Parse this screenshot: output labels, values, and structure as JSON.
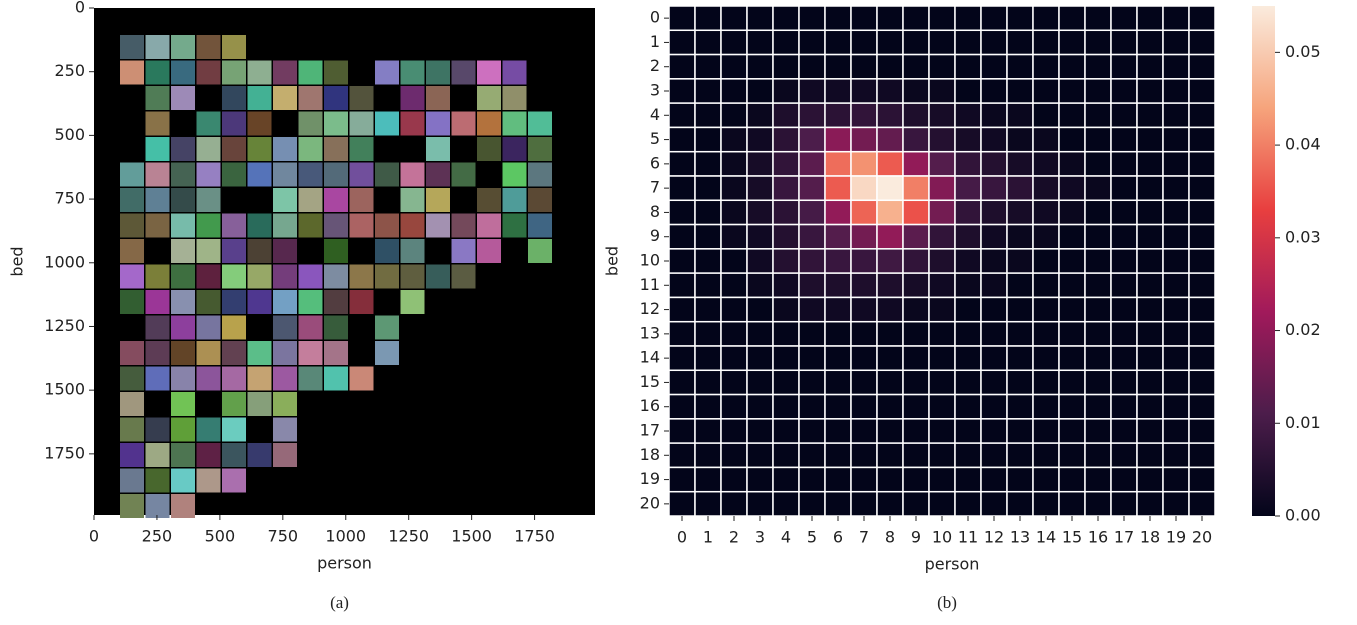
{
  "chart_data": [
    {
      "type": "image",
      "xlabel": "person",
      "ylabel": "bed",
      "caption": "(a)",
      "xlim": [
        0,
        1990
      ],
      "ylim": [
        1990,
        0
      ],
      "xticks": [
        0,
        250,
        500,
        750,
        1000,
        1250,
        1500,
        1750
      ],
      "yticks": [
        0,
        250,
        500,
        750,
        1000,
        1250,
        1500,
        1750
      ],
      "background": "#000000"
    },
    {
      "type": "heatmap",
      "xlabel": "person",
      "ylabel": "bed",
      "caption": "(b)",
      "x": [
        0,
        1,
        2,
        3,
        4,
        5,
        6,
        7,
        8,
        9,
        10,
        11,
        12,
        13,
        14,
        15,
        16,
        17,
        18,
        19,
        20
      ],
      "y": [
        0,
        1,
        2,
        3,
        4,
        5,
        6,
        7,
        8,
        9,
        10,
        11,
        12,
        13,
        14,
        15,
        16,
        17,
        18,
        19,
        20
      ],
      "values": [
        [
          0,
          0,
          0,
          0,
          0,
          0,
          0,
          0,
          0,
          0,
          0,
          0,
          0,
          0,
          0,
          0,
          0,
          0,
          0,
          0,
          0
        ],
        [
          0,
          0,
          0,
          0,
          0,
          0,
          0,
          0,
          0,
          0,
          0,
          0,
          0,
          0,
          0,
          0,
          0,
          0,
          0,
          0,
          0
        ],
        [
          0,
          0,
          0,
          0,
          0,
          0,
          0,
          0,
          0,
          0,
          0,
          0,
          0,
          0,
          0,
          0,
          0,
          0,
          0,
          0,
          0
        ],
        [
          0,
          0,
          0,
          0,
          0.001,
          0.002,
          0.002,
          0.002,
          0.002,
          0.001,
          0.001,
          0,
          0,
          0,
          0,
          0,
          0,
          0,
          0,
          0,
          0
        ],
        [
          0,
          0,
          0,
          0.001,
          0.004,
          0.006,
          0.006,
          0.007,
          0.006,
          0.004,
          0.003,
          0.002,
          0.001,
          0.001,
          0,
          0,
          0,
          0,
          0,
          0,
          0
        ],
        [
          0,
          0,
          0.001,
          0.002,
          0.006,
          0.011,
          0.019,
          0.016,
          0.014,
          0.008,
          0.005,
          0.003,
          0.002,
          0.001,
          0.001,
          0,
          0,
          0,
          0,
          0,
          0
        ],
        [
          0,
          0,
          0.001,
          0.003,
          0.007,
          0.013,
          0.038,
          0.042,
          0.036,
          0.02,
          0.012,
          0.007,
          0.005,
          0.003,
          0.002,
          0.001,
          0,
          0,
          0,
          0,
          0
        ],
        [
          0,
          0,
          0.001,
          0.003,
          0.008,
          0.012,
          0.036,
          0.052,
          0.055,
          0.04,
          0.018,
          0.01,
          0.008,
          0.006,
          0.003,
          0.002,
          0.001,
          0,
          0,
          0,
          0
        ],
        [
          0,
          0,
          0.001,
          0.003,
          0.006,
          0.01,
          0.02,
          0.037,
          0.046,
          0.035,
          0.016,
          0.007,
          0.004,
          0.003,
          0.002,
          0.001,
          0,
          0,
          0,
          0,
          0
        ],
        [
          0,
          0,
          0.001,
          0.002,
          0.005,
          0.008,
          0.012,
          0.016,
          0.02,
          0.013,
          0.007,
          0.004,
          0.002,
          0.001,
          0.001,
          0,
          0,
          0,
          0,
          0,
          0
        ],
        [
          0,
          0,
          0,
          0.002,
          0.005,
          0.007,
          0.008,
          0.008,
          0.009,
          0.007,
          0.004,
          0.002,
          0.001,
          0.001,
          0,
          0,
          0,
          0,
          0,
          0,
          0
        ],
        [
          0,
          0,
          0,
          0.001,
          0.002,
          0.004,
          0.004,
          0.004,
          0.004,
          0.003,
          0.002,
          0.001,
          0.001,
          0,
          0,
          0,
          0,
          0,
          0,
          0,
          0
        ],
        [
          0,
          0,
          0,
          0,
          0.001,
          0.002,
          0.002,
          0.002,
          0.002,
          0.001,
          0.001,
          0,
          0,
          0,
          0,
          0,
          0,
          0,
          0,
          0,
          0
        ],
        [
          0,
          0,
          0,
          0,
          0,
          0,
          0,
          0,
          0,
          0,
          0,
          0,
          0,
          0,
          0,
          0,
          0,
          0,
          0,
          0,
          0
        ],
        [
          0,
          0,
          0,
          0,
          0,
          0,
          0,
          0,
          0,
          0,
          0,
          0,
          0,
          0,
          0,
          0,
          0,
          0,
          0,
          0,
          0
        ],
        [
          0,
          0,
          0,
          0,
          0,
          0,
          0,
          0,
          0,
          0,
          0,
          0,
          0,
          0,
          0,
          0,
          0,
          0,
          0,
          0,
          0
        ],
        [
          0,
          0,
          0,
          0,
          0,
          0,
          0,
          0,
          0,
          0,
          0,
          0,
          0,
          0,
          0,
          0,
          0,
          0,
          0,
          0,
          0
        ],
        [
          0,
          0,
          0,
          0,
          0,
          0,
          0,
          0,
          0,
          0,
          0,
          0,
          0,
          0,
          0,
          0,
          0,
          0,
          0,
          0,
          0
        ],
        [
          0,
          0,
          0,
          0,
          0,
          0,
          0,
          0,
          0,
          0,
          0,
          0,
          0,
          0,
          0,
          0,
          0,
          0,
          0,
          0,
          0
        ],
        [
          0,
          0,
          0,
          0,
          0,
          0,
          0,
          0,
          0,
          0,
          0,
          0,
          0,
          0,
          0,
          0,
          0,
          0,
          0,
          0,
          0
        ],
        [
          0,
          0,
          0,
          0,
          0,
          0,
          0,
          0,
          0,
          0,
          0,
          0,
          0,
          0,
          0,
          0,
          0,
          0,
          0,
          0,
          0
        ]
      ],
      "clim": [
        0,
        0.055
      ],
      "cticks": [
        {
          "value": 0,
          "label": "0.00"
        },
        {
          "value": 0.01,
          "label": "0.01"
        },
        {
          "value": 0.02,
          "label": "0.02"
        },
        {
          "value": 0.03,
          "label": "0.03"
        },
        {
          "value": 0.04,
          "label": "0.04"
        },
        {
          "value": 0.05,
          "label": "0.05"
        }
      ],
      "cmap": [
        "#03051a",
        "#4c1d4b",
        "#a11a5b",
        "#e83f3f",
        "#f6a47c",
        "#faebdd"
      ],
      "gridline_color": "#ffffff"
    }
  ]
}
